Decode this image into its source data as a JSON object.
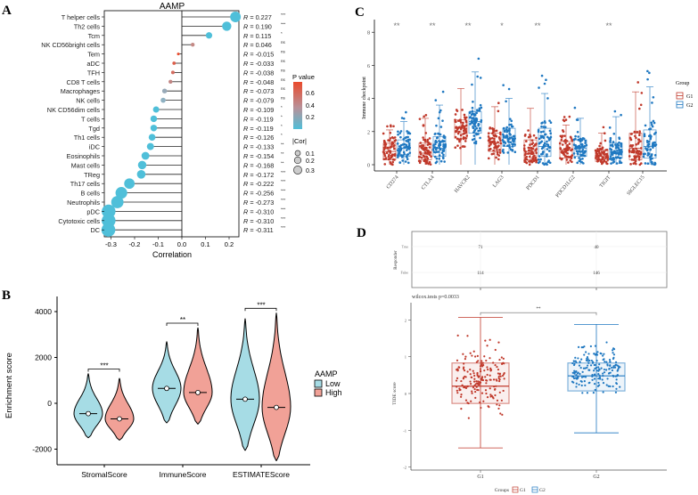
{
  "chart_data": [
    {
      "panel": "A",
      "type": "lollipop",
      "title": "AAMP",
      "xlabel": "Correlation",
      "xlim": [
        -0.33,
        0.25
      ],
      "xticks": [
        "-0.3",
        "-0.2",
        "-0.1",
        "0.0",
        "0.1",
        "0.2"
      ],
      "rows": [
        {
          "label": "T helper cells",
          "r": 0.227,
          "sig": "***",
          "color": "#4fbfd9"
        },
        {
          "label": "Th2 cells",
          "r": 0.19,
          "sig": "***",
          "color": "#4fbfd9"
        },
        {
          "label": "Tcm",
          "r": 0.115,
          "sig": "*",
          "color": "#4fbfd9"
        },
        {
          "label": "NK CD56bright cells",
          "r": 0.046,
          "sig": "ns",
          "color": "#c48a86"
        },
        {
          "label": "Tem",
          "r": -0.015,
          "sig": "ns",
          "color": "#ea4a2c"
        },
        {
          "label": "aDC",
          "r": -0.033,
          "sig": "ns",
          "color": "#dc5f4b"
        },
        {
          "label": "TFH",
          "r": -0.038,
          "sig": "ns",
          "color": "#d46c60"
        },
        {
          "label": "CD8 T cells",
          "r": -0.048,
          "sig": "ns",
          "color": "#c08583"
        },
        {
          "label": "Macrophages",
          "r": -0.073,
          "sig": "ns",
          "color": "#98aab8"
        },
        {
          "label": "NK cells",
          "r": -0.079,
          "sig": "ns",
          "color": "#8fb1c2"
        },
        {
          "label": "NK CD56dim cells",
          "r": -0.109,
          "sig": "*",
          "color": "#4fbfd9"
        },
        {
          "label": "T cells",
          "r": -0.119,
          "sig": "*",
          "color": "#4fbfd9"
        },
        {
          "label": "Tgd",
          "r": -0.119,
          "sig": "*",
          "color": "#4fbfd9"
        },
        {
          "label": "Th1 cells",
          "r": -0.126,
          "sig": "*",
          "color": "#4fbfd9"
        },
        {
          "label": "iDC",
          "r": -0.133,
          "sig": "**",
          "color": "#4fbfd9"
        },
        {
          "label": "Eosinophils",
          "r": -0.154,
          "sig": "**",
          "color": "#4fbfd9"
        },
        {
          "label": "Mast cells",
          "r": -0.168,
          "sig": "**",
          "color": "#4fbfd9"
        },
        {
          "label": "TReg",
          "r": -0.172,
          "sig": "***",
          "color": "#4fbfd9"
        },
        {
          "label": "Th17 cells",
          "r": -0.222,
          "sig": "***",
          "color": "#4fbfd9"
        },
        {
          "label": "B cells",
          "r": -0.256,
          "sig": "***",
          "color": "#4fbfd9"
        },
        {
          "label": "Neutrophils",
          "r": -0.273,
          "sig": "***",
          "color": "#4fbfd9"
        },
        {
          "label": "pDC",
          "r": -0.31,
          "sig": "***",
          "color": "#4fbfd9"
        },
        {
          "label": "Cytotoxic cells",
          "r": -0.31,
          "sig": "***",
          "color": "#4fbfd9"
        },
        {
          "label": "DC",
          "r": -0.311,
          "sig": "***",
          "color": "#4fbfd9"
        }
      ],
      "r_prefix": "R = ",
      "legend_pvalue": {
        "title": "P value",
        "ticks": [
          "0.6",
          "0.4",
          "0.2"
        ],
        "low_color": "#4fbfd9",
        "high_color": "#ea4a2c"
      },
      "legend_size": {
        "title": "|Cor|",
        "ticks": [
          "0.1",
          "0.2",
          "0.3"
        ]
      }
    },
    {
      "panel": "B",
      "type": "violin",
      "ylabel": "Enrichment score",
      "ylim": [
        -2600,
        4600
      ],
      "yticks": [
        "4000",
        "2000",
        "0",
        "-2000"
      ],
      "categories": [
        "StromalScore",
        "ImmuneScore",
        "ESTIMATEScore"
      ],
      "significance": [
        "***",
        "**",
        "***"
      ],
      "legend": {
        "title": "AAMP",
        "items": [
          {
            "label": "Low",
            "color": "#a6dce5"
          },
          {
            "label": "High",
            "color": "#f1a197"
          }
        ]
      },
      "series": [
        {
          "name": "Low",
          "min": [
            -1500,
            -850,
            -2050
          ],
          "max": [
            1300,
            2700,
            3700
          ],
          "median": [
            -450,
            650,
            180
          ]
        },
        {
          "name": "High",
          "min": [
            -1600,
            -900,
            -2500
          ],
          "max": [
            1100,
            3300,
            3950
          ],
          "median": [
            -680,
            470,
            -180
          ]
        }
      ]
    },
    {
      "panel": "C",
      "type": "box-jitter",
      "ylabel": "Immune checkpoint",
      "ylim": [
        -0.5,
        8.5
      ],
      "yticks": [
        "0",
        "2",
        "4",
        "6",
        "8"
      ],
      "categories": [
        "CD274",
        "CTLA4",
        "HAVCR2",
        "LAG3",
        "PDCD1",
        "PDCD1LG2",
        "TIGIT",
        "SIGLEC15"
      ],
      "significance": [
        "**",
        "**",
        "**",
        "*",
        "**",
        "",
        "**",
        ""
      ],
      "legend": {
        "title": "Group",
        "items": [
          {
            "label": "G1",
            "color": "#c0392b"
          },
          {
            "label": "G2",
            "color": "#1f78c1"
          }
        ]
      },
      "series": [
        {
          "name": "G1",
          "q1": [
            0.3,
            0.3,
            1.6,
            0.8,
            0.3,
            0.4,
            0.2,
            0.3
          ],
          "median": [
            0.8,
            0.7,
            2.2,
            1.3,
            0.8,
            0.9,
            0.5,
            1.0
          ],
          "q3": [
            1.3,
            1.3,
            2.7,
            1.9,
            1.5,
            1.4,
            0.9,
            1.9
          ],
          "max": [
            2.1,
            2.8,
            4.6,
            3.5,
            3.4,
            2.4,
            1.9,
            4.4
          ]
        },
        {
          "name": "G2",
          "q1": [
            0.5,
            0.5,
            1.9,
            1.1,
            0.5,
            0.5,
            0.4,
            0.4
          ],
          "median": [
            1.0,
            1.0,
            2.6,
            1.6,
            1.1,
            1.0,
            0.8,
            1.1
          ],
          "q3": [
            1.5,
            1.7,
            3.2,
            2.2,
            2.2,
            1.5,
            1.3,
            2.1
          ],
          "max": [
            2.6,
            3.6,
            5.6,
            4.0,
            4.3,
            2.8,
            2.9,
            4.7
          ]
        }
      ]
    },
    {
      "panel": "D",
      "type": "table",
      "ylabel": "Responder",
      "rows": [
        "True",
        "False"
      ],
      "columns": [
        "G1",
        "G2"
      ],
      "values": [
        [
          71,
          40
        ],
        [
          114,
          146
        ]
      ]
    },
    {
      "panel": "D",
      "type": "box-jitter",
      "subtitle": "wilcox.tests p=0.0033",
      "ylabel": "TIDE score",
      "ylim": [
        -2.1,
        2.4
      ],
      "yticks": [
        "2",
        "1",
        "0",
        "-1",
        "-2"
      ],
      "categories": [
        "G1",
        "G2"
      ],
      "significance": "**",
      "colors": [
        "#c0392b",
        "#1f78c1"
      ],
      "q1": [
        -0.27,
        0.07
      ],
      "median": [
        0.2,
        0.48
      ],
      "q3": [
        0.83,
        0.83
      ],
      "whisker_low": [
        -1.48,
        -1.07
      ],
      "whisker_high": [
        2.07,
        1.88
      ],
      "legend": {
        "title": "Groups",
        "items": [
          "G1",
          "G2"
        ]
      }
    }
  ],
  "panels": {
    "a": "A",
    "b": "B",
    "c": "C",
    "d": "D"
  }
}
